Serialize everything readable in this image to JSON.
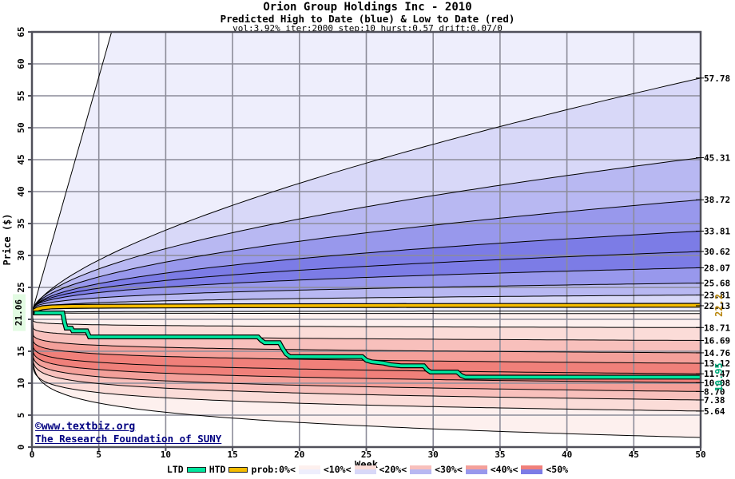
{
  "chart_data": {
    "type": "area",
    "variant": "monte-carlo-probability-fan",
    "title": "Orion Group Holdings Inc - 2010",
    "subtitle": "Predicted High to Date (blue) &  Low to Date (red)",
    "params_line": "vol:3.92% iter:2000 step:10 hurst:0.57 drift:0.07/0",
    "xlabel": "Week",
    "ylabel": "Price ($)",
    "x_range": [
      0,
      50
    ],
    "y_range": [
      0,
      65
    ],
    "x_ticks": [
      0,
      5,
      10,
      15,
      20,
      25,
      30,
      35,
      40,
      45,
      50
    ],
    "y_grid_values": [
      0,
      5,
      10,
      15,
      20,
      25,
      30,
      35,
      40,
      45,
      50,
      55,
      60,
      65
    ],
    "y_tick_labels": [
      "0",
      "5",
      "10",
      "15",
      "25",
      "30",
      "35",
      "40",
      "45",
      "50",
      "55",
      "60",
      "65"
    ],
    "grid": true,
    "legend_position": "bottom",
    "start_price": 21.06,
    "start_price_label": "21.06",
    "high_band_ends_week50": [
      57.78,
      45.31,
      38.72,
      33.81,
      30.62,
      28.07,
      25.68,
      23.81,
      22.13
    ],
    "low_band_ends_week50": [
      18.71,
      16.69,
      14.76,
      13.12,
      11.47,
      10.08,
      8.7,
      7.38,
      5.64
    ],
    "right_axis_labels": [
      "57.78",
      "45.31",
      "38.72",
      "33.81",
      "30.62",
      "28.07",
      "25.68",
      "23.81",
      "22.13",
      "18.71",
      "16.69",
      "14.76",
      "13.12",
      "11.47",
      "10.08",
      "8.70",
      "7.38",
      "5.64"
    ],
    "htd_final_label": "22.2",
    "ltd_final_label": "10.95",
    "htd_series": {
      "name": "HTD",
      "points": [
        [
          0,
          21.06
        ],
        [
          0.2,
          21.35
        ],
        [
          0.4,
          21.6
        ],
        [
          0.8,
          21.82
        ],
        [
          1.5,
          21.95
        ],
        [
          3,
          22.02
        ],
        [
          6,
          22.06
        ],
        [
          10,
          22.09
        ],
        [
          15,
          22.12
        ],
        [
          20,
          22.14
        ],
        [
          27,
          22.16
        ],
        [
          35,
          22.18
        ],
        [
          50,
          22.2
        ]
      ]
    },
    "ltd_series": {
      "name": "LTD",
      "points": [
        [
          0,
          21.0
        ],
        [
          2.3,
          21.0
        ],
        [
          2.45,
          19.4
        ],
        [
          2.55,
          18.62
        ],
        [
          2.95,
          18.62
        ],
        [
          3.05,
          18.2
        ],
        [
          4.1,
          18.2
        ],
        [
          4.3,
          17.25
        ],
        [
          16.9,
          17.25
        ],
        [
          17.15,
          16.7
        ],
        [
          17.4,
          16.35
        ],
        [
          18.5,
          16.35
        ],
        [
          18.7,
          15.6
        ],
        [
          19.0,
          14.6
        ],
        [
          19.3,
          14.15
        ],
        [
          24.7,
          14.15
        ],
        [
          25.0,
          13.6
        ],
        [
          25.4,
          13.35
        ],
        [
          26.3,
          13.15
        ],
        [
          26.8,
          12.9
        ],
        [
          27.6,
          12.72
        ],
        [
          29.3,
          12.72
        ],
        [
          29.55,
          12.1
        ],
        [
          29.8,
          11.75
        ],
        [
          31.8,
          11.75
        ],
        [
          32.1,
          11.2
        ],
        [
          32.4,
          10.95
        ],
        [
          50,
          10.95
        ]
      ]
    },
    "fan": {
      "high": [
        {
          "end": 390.0,
          "exp": 1.0
        },
        {
          "end": 57.78,
          "exp": 0.65
        },
        {
          "end": 45.31,
          "exp": 0.55
        },
        {
          "end": 38.72,
          "exp": 0.5
        },
        {
          "end": 33.81,
          "exp": 0.45
        },
        {
          "end": 30.62,
          "exp": 0.4
        },
        {
          "end": 28.07,
          "exp": 0.35
        },
        {
          "end": 25.68,
          "exp": 0.3
        },
        {
          "end": 23.81,
          "exp": 0.25
        },
        {
          "end": 22.13,
          "exp": 0.18
        },
        {
          "end": 21.3,
          "exp": 0.25
        }
      ],
      "low": [
        {
          "end": 20.9,
          "exp": 0.25
        },
        {
          "end": 18.71,
          "exp": 0.09
        },
        {
          "end": 16.69,
          "exp": 0.09
        },
        {
          "end": 14.76,
          "exp": 0.09
        },
        {
          "end": 13.12,
          "exp": 0.09
        },
        {
          "end": 11.47,
          "exp": 0.09
        },
        {
          "end": 10.08,
          "exp": 0.09
        },
        {
          "end": 8.7,
          "exp": 0.09
        },
        {
          "end": 7.38,
          "exp": 0.09
        },
        {
          "end": 5.64,
          "exp": 0.09
        },
        {
          "end": 1.5,
          "exp": 0.14
        }
      ]
    }
  },
  "legend": {
    "ltd_label": "LTD",
    "htd_label": "HTD",
    "prob_labels": [
      "prob:0%<",
      "<10%<",
      "<20%<",
      "<30%<",
      "<40%<",
      "<50%"
    ]
  },
  "watermark": {
    "line1": "©www.textbiz.org",
    "line2": "The Research Foundation of SUNY"
  },
  "colors": {
    "accent_teal": "#00e69e",
    "accent_orange": "#f5bc00",
    "label_gold": "#b8860b",
    "label_green": "#00aa7a",
    "navy": "#000080",
    "grid": "#8c8c99",
    "frame": "#50505a",
    "blue_shades": [
      "#eeeefc",
      "#d8d8f8",
      "#b8b8f2",
      "#9898ec",
      "#7c7ce6"
    ],
    "red_shades": [
      "#fdf0ee",
      "#fbdcd8",
      "#f8c0bc",
      "#f4a09a",
      "#f0807a"
    ],
    "start_highlight": "#e2fbe2"
  }
}
